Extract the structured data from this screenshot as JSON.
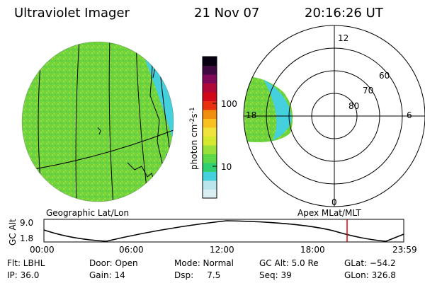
{
  "header": {
    "instrument": "Ultraviolet Imager",
    "date": "21 Nov 07",
    "time": "20:16:26 UT"
  },
  "colorbar": {
    "label": "photon cm",
    "sup1": "-2",
    "s": "s",
    "sup2": "-1",
    "ticks": [
      {
        "label": "100",
        "value": 100
      },
      {
        "label": "10",
        "value": 10
      }
    ],
    "colors": [
      "#d8eef0",
      "#b8e6ec",
      "#44d0dc",
      "#30d070",
      "#5cd848",
      "#9ae03a",
      "#d4e830",
      "#f0e43c",
      "#f8c020",
      "#f09010",
      "#e83010",
      "#d00818",
      "#b00838",
      "#800858",
      "#400840",
      "#080010"
    ]
  },
  "geo_map": {
    "label": "Geographic Lat/Lon",
    "emission_color": "#6cd43a"
  },
  "polar_map": {
    "label": "Apex  MLat/MLT",
    "mlt_labels": [
      "12",
      "18",
      "6",
      "0"
    ],
    "mlat_labels": [
      "60",
      "70",
      "80"
    ]
  },
  "altitude_plot": {
    "ylabel": "GC Alt",
    "yticks": [
      "9.0",
      "1.8"
    ],
    "xticks": [
      "00:00",
      "06:00",
      "12:00",
      "18:00",
      "23:59"
    ],
    "current_time_color": "#e00000"
  },
  "info": {
    "filter": "Flt: LBHL",
    "ip": "IP: 36.0",
    "door": "Door: Open",
    "gain": "Gain: 14",
    "mode": "Mode: Normal",
    "dsp": "Dsp:     7.5",
    "gc_alt": "GC Alt: 5.0 Re",
    "seq": "Seq: 39",
    "glat": "GLat: −54.2",
    "glon": "GLon: 326.8"
  }
}
